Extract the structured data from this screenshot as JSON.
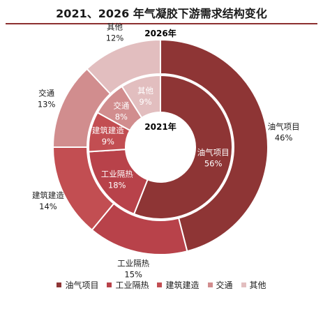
{
  "title": "2021、2026 年气凝胶下游需求结构变化",
  "colors": [
    "#8e3535",
    "#b8424a",
    "#c24e52",
    "#d18d8e",
    "#e2bebf"
  ],
  "chart_data": {
    "type": "pie",
    "categories": [
      "油气项目",
      "工业隔热",
      "建筑建造",
      "交通",
      "其他"
    ],
    "series": [
      {
        "name": "2026年",
        "ring": "outer",
        "values": [
          46,
          15,
          14,
          13,
          12
        ]
      },
      {
        "name": "2021年",
        "ring": "inner",
        "values": [
          56,
          18,
          9,
          8,
          9
        ]
      }
    ],
    "legend_position": "bottom"
  }
}
